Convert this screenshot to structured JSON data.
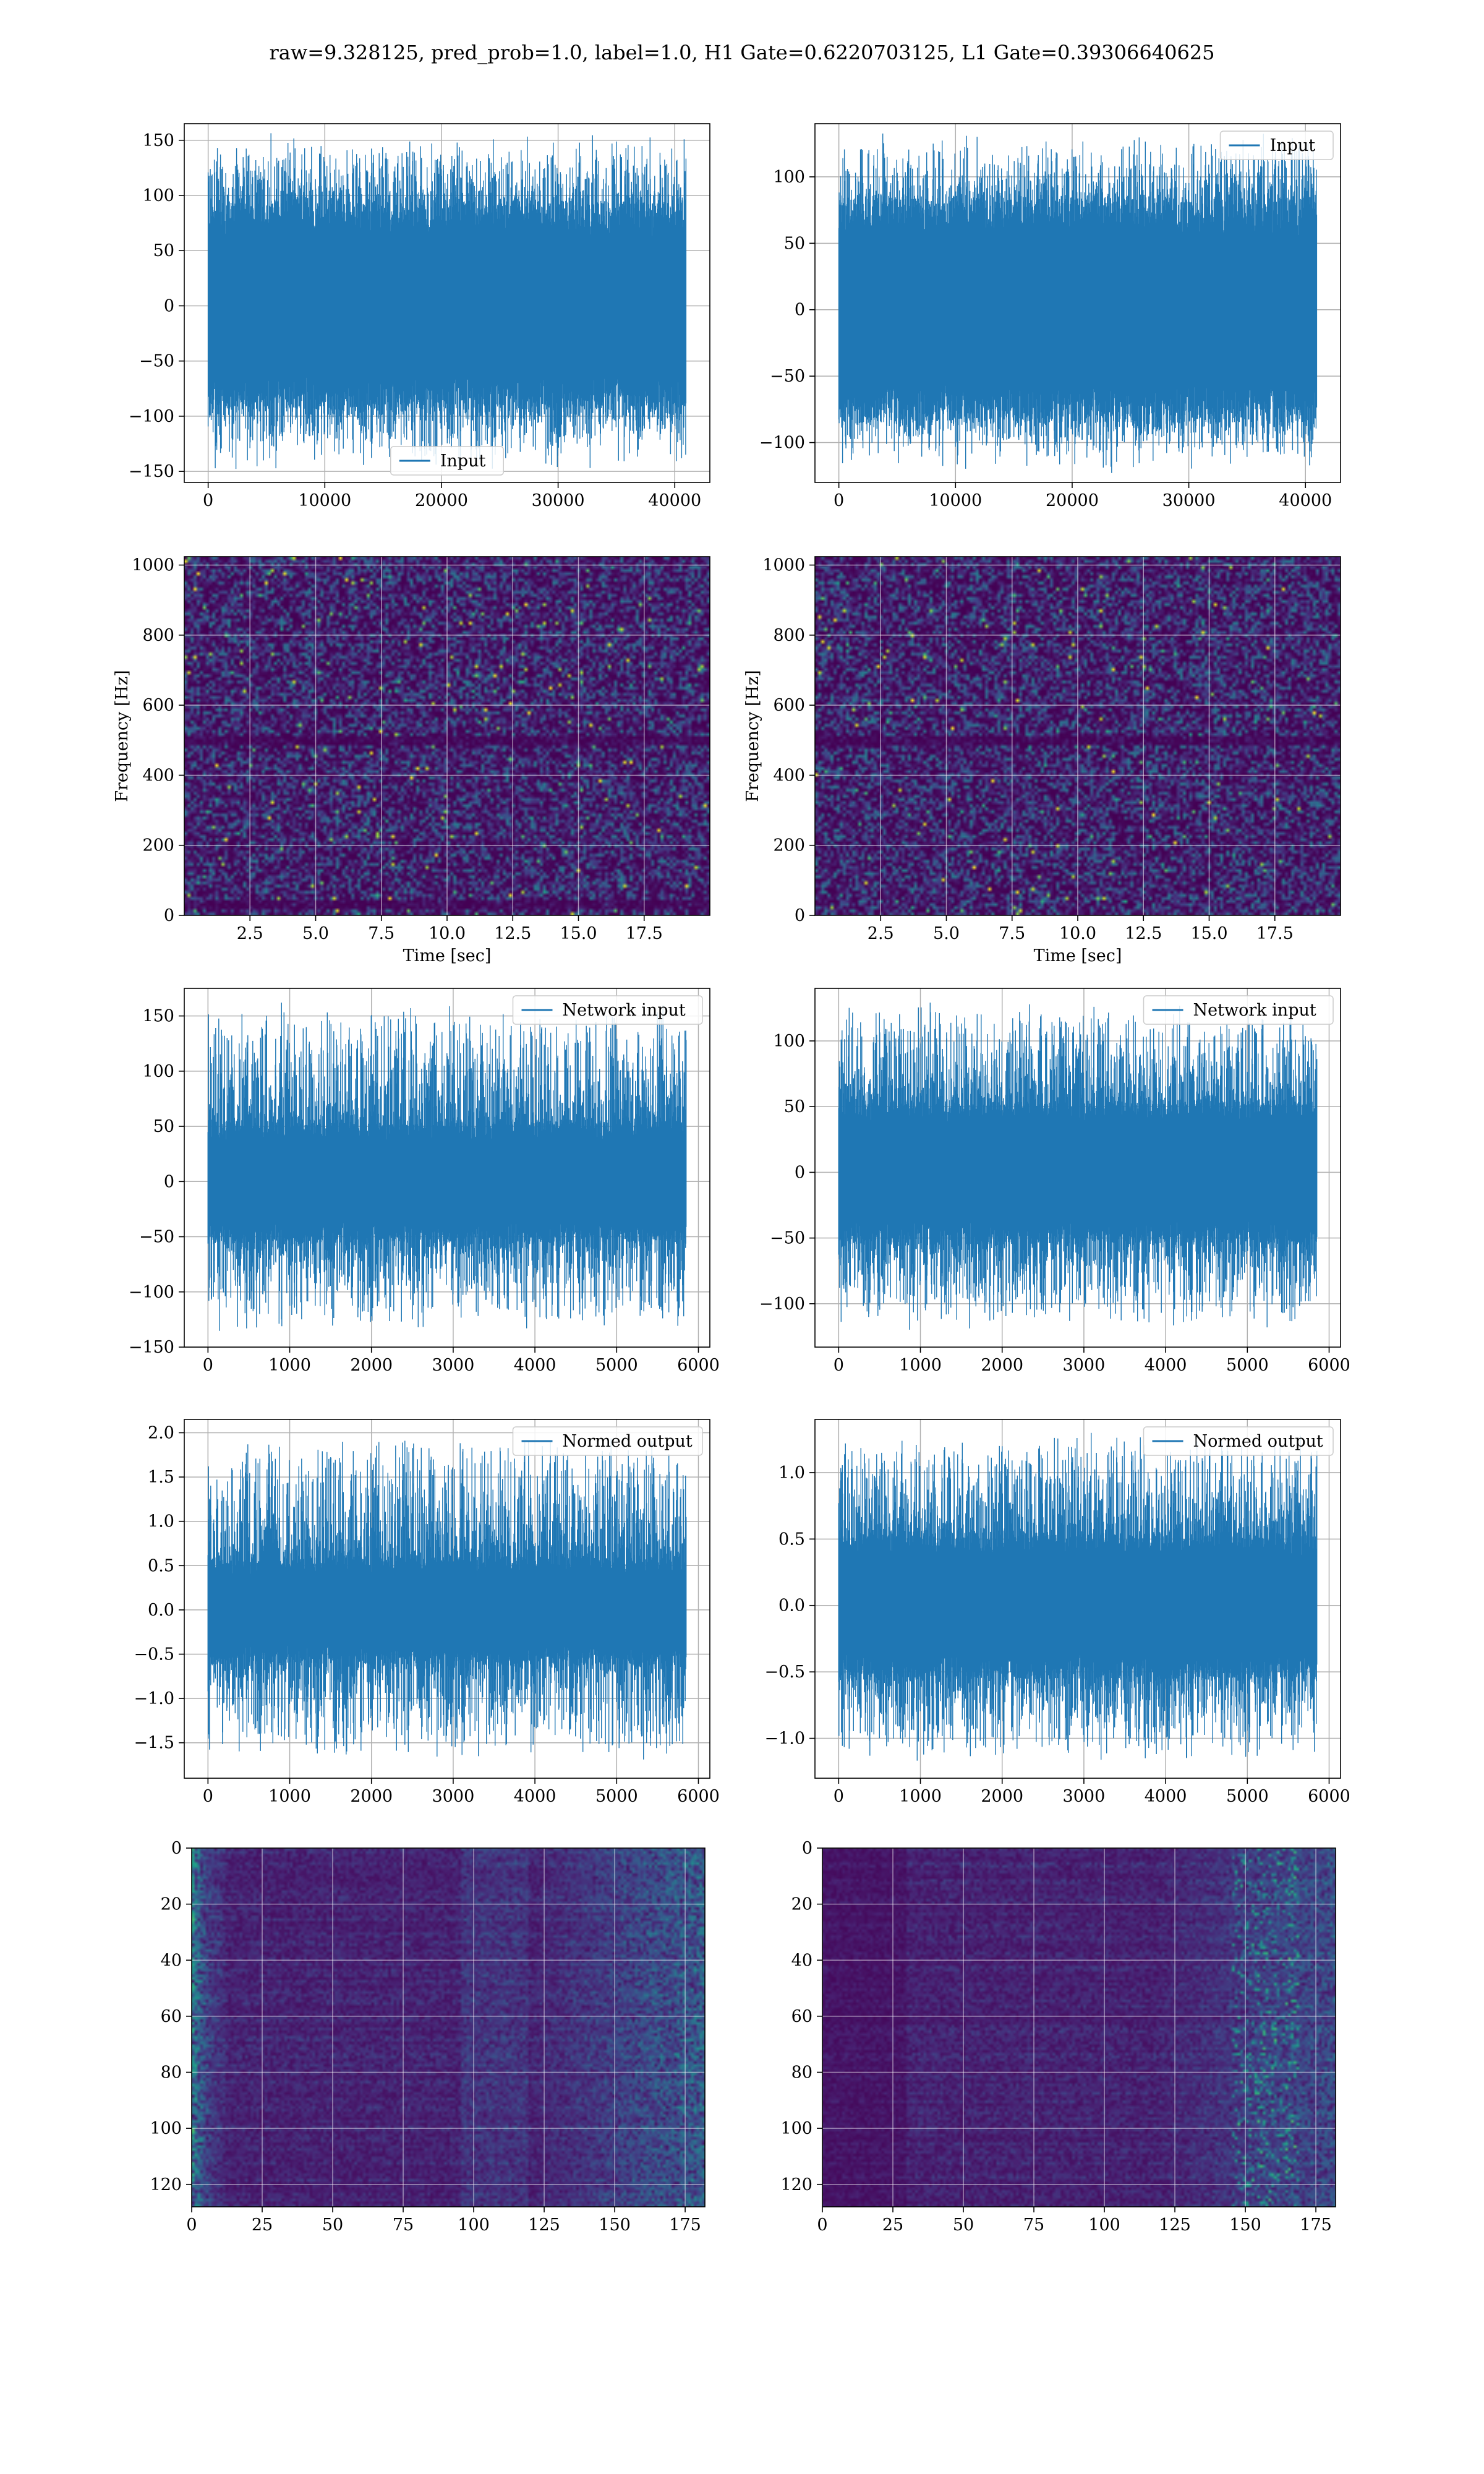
{
  "figure": {
    "suptitle": "raw=9.328125, pred_prob=1.0, label=1.0, H1 Gate=0.6220703125, L1 Gate=0.39306640625",
    "colors": {
      "line": "#1f77b4",
      "spectrogram_low": "#440154",
      "spectrogram_high": "#fde725"
    }
  },
  "chart_data": [
    {
      "id": "h1-input",
      "type": "line",
      "series": [
        {
          "name": "Input",
          "color": "#1f77b4",
          "envelope_upper_typical": 95,
          "envelope_lower_typical": -95,
          "x_range": [
            0,
            40960
          ]
        }
      ],
      "xlim": [
        -2048,
        43008
      ],
      "ylim": [
        -160,
        165
      ],
      "xticks": [
        0,
        10000,
        20000,
        30000,
        40000
      ],
      "xtick_labels": [
        "0",
        "10000",
        "20000",
        "30000",
        "40000"
      ],
      "yticks": [
        -150,
        -100,
        -50,
        0,
        50,
        100,
        150
      ],
      "ytick_labels": [
        "−150",
        "−100",
        "−50",
        "0",
        "50",
        "100",
        "150"
      ],
      "legend": "lower center",
      "grid": true
    },
    {
      "id": "l1-input",
      "type": "line",
      "series": [
        {
          "name": "Input",
          "color": "#1f77b4",
          "envelope_upper_typical": 85,
          "envelope_lower_typical": -85,
          "x_range": [
            0,
            40960
          ]
        }
      ],
      "xlim": [
        -2048,
        43008
      ],
      "ylim": [
        -130,
        140
      ],
      "xticks": [
        0,
        10000,
        20000,
        30000,
        40000
      ],
      "xtick_labels": [
        "0",
        "10000",
        "20000",
        "30000",
        "40000"
      ],
      "yticks": [
        -100,
        -50,
        0,
        50,
        100
      ],
      "ytick_labels": [
        "−100",
        "−50",
        "0",
        "50",
        "100"
      ],
      "legend": "upper right",
      "grid": true
    },
    {
      "id": "h1-spectrogram",
      "type": "heatmap",
      "xlabel": "Time [sec]",
      "ylabel": "Frequency [Hz]",
      "xlim": [
        0,
        20
      ],
      "ylim": [
        0,
        1024
      ],
      "xticks": [
        2.5,
        5.0,
        7.5,
        10.0,
        12.5,
        15.0,
        17.5
      ],
      "xtick_labels": [
        "2.5",
        "5.0",
        "7.5",
        "10.0",
        "12.5",
        "15.0",
        "17.5"
      ],
      "yticks": [
        0,
        200,
        400,
        600,
        800,
        1000
      ],
      "ytick_labels": [
        "0",
        "200",
        "400",
        "600",
        "800",
        "1000"
      ],
      "dark_bands_hz": [
        28,
        500
      ],
      "colormap": "viridis",
      "grid": true
    },
    {
      "id": "l1-spectrogram",
      "type": "heatmap",
      "xlabel": "Time [sec]",
      "ylabel": "Frequency [Hz]",
      "xlim": [
        0,
        20
      ],
      "ylim": [
        0,
        1024
      ],
      "xticks": [
        2.5,
        5.0,
        7.5,
        10.0,
        12.5,
        15.0,
        17.5
      ],
      "xtick_labels": [
        "2.5",
        "5.0",
        "7.5",
        "10.0",
        "12.5",
        "15.0",
        "17.5"
      ],
      "yticks": [
        0,
        200,
        400,
        600,
        800,
        1000
      ],
      "ytick_labels": [
        "0",
        "200",
        "400",
        "600",
        "800",
        "1000"
      ],
      "dark_bands_hz": [
        500
      ],
      "colormap": "viridis",
      "grid": true
    },
    {
      "id": "h1-network-input",
      "type": "line",
      "series": [
        {
          "name": "Network input",
          "color": "#1f77b4",
          "envelope_upper_typical": 55,
          "envelope_lower_typical": -55,
          "x_range": [
            0,
            5850
          ]
        }
      ],
      "xlim": [
        -290,
        6140
      ],
      "ylim": [
        -150,
        175
      ],
      "xticks": [
        0,
        1000,
        2000,
        3000,
        4000,
        5000,
        6000
      ],
      "xtick_labels": [
        "0",
        "1000",
        "2000",
        "3000",
        "4000",
        "5000",
        "6000"
      ],
      "yticks": [
        -150,
        -100,
        -50,
        0,
        50,
        100,
        150
      ],
      "ytick_labels": [
        "−150",
        "−100",
        "−50",
        "0",
        "50",
        "100",
        "150"
      ],
      "legend": "upper right",
      "grid": true
    },
    {
      "id": "l1-network-input",
      "type": "line",
      "series": [
        {
          "name": "Network input",
          "color": "#1f77b4",
          "envelope_upper_typical": 55,
          "envelope_lower_typical": -55,
          "x_range": [
            0,
            5850
          ]
        }
      ],
      "xlim": [
        -290,
        6140
      ],
      "ylim": [
        -133,
        140
      ],
      "xticks": [
        0,
        1000,
        2000,
        3000,
        4000,
        5000,
        6000
      ],
      "xtick_labels": [
        "0",
        "1000",
        "2000",
        "3000",
        "4000",
        "5000",
        "6000"
      ],
      "yticks": [
        -100,
        -50,
        0,
        50,
        100
      ],
      "ytick_labels": [
        "−100",
        "−50",
        "0",
        "50",
        "100"
      ],
      "legend": "upper right",
      "grid": true
    },
    {
      "id": "h1-normed-output",
      "type": "line",
      "series": [
        {
          "name": "Normed output",
          "color": "#1f77b4",
          "envelope_upper_typical": 0.6,
          "envelope_lower_typical": -0.6,
          "x_range": [
            0,
            5850
          ]
        }
      ],
      "xlim": [
        -290,
        6140
      ],
      "ylim": [
        -1.9,
        2.15
      ],
      "xticks": [
        0,
        1000,
        2000,
        3000,
        4000,
        5000,
        6000
      ],
      "xtick_labels": [
        "0",
        "1000",
        "2000",
        "3000",
        "4000",
        "5000",
        "6000"
      ],
      "yticks": [
        -1.5,
        -1.0,
        -0.5,
        0.0,
        0.5,
        1.0,
        1.5,
        2.0
      ],
      "ytick_labels": [
        "−1.5",
        "−1.0",
        "−0.5",
        "0.0",
        "0.5",
        "1.0",
        "1.5",
        "2.0"
      ],
      "legend": "upper right",
      "grid": true
    },
    {
      "id": "l1-normed-output",
      "type": "line",
      "series": [
        {
          "name": "Normed output",
          "color": "#1f77b4",
          "envelope_upper_typical": 0.55,
          "envelope_lower_typical": -0.55,
          "x_range": [
            0,
            5850
          ]
        }
      ],
      "xlim": [
        -290,
        6140
      ],
      "ylim": [
        -1.3,
        1.4
      ],
      "xticks": [
        0,
        1000,
        2000,
        3000,
        4000,
        5000,
        6000
      ],
      "xtick_labels": [
        "0",
        "1000",
        "2000",
        "3000",
        "4000",
        "5000",
        "6000"
      ],
      "yticks": [
        -1.0,
        -0.5,
        0.0,
        0.5,
        1.0
      ],
      "ytick_labels": [
        "−1.0",
        "−0.5",
        "0.0",
        "0.5",
        "1.0"
      ],
      "legend": "upper right",
      "grid": true
    },
    {
      "id": "h1-feature-map",
      "type": "heatmap",
      "rows": 128,
      "cols": 183,
      "xlim": [
        0,
        182
      ],
      "ylim": [
        128,
        0
      ],
      "xticks": [
        0,
        25,
        50,
        75,
        100,
        125,
        150,
        175
      ],
      "xtick_labels": [
        "0",
        "25",
        "50",
        "75",
        "100",
        "125",
        "150",
        "175"
      ],
      "yticks": [
        0,
        20,
        40,
        60,
        80,
        100,
        120
      ],
      "ytick_labels": [
        "0",
        "20",
        "40",
        "60",
        "80",
        "100",
        "120"
      ],
      "colormap": "viridis",
      "grid": true
    },
    {
      "id": "l1-feature-map",
      "type": "heatmap",
      "rows": 128,
      "cols": 183,
      "xlim": [
        0,
        182
      ],
      "ylim": [
        128,
        0
      ],
      "xticks": [
        0,
        25,
        50,
        75,
        100,
        125,
        150,
        175
      ],
      "xtick_labels": [
        "0",
        "25",
        "50",
        "75",
        "100",
        "125",
        "150",
        "175"
      ],
      "yticks": [
        0,
        20,
        40,
        60,
        80,
        100,
        120
      ],
      "ytick_labels": [
        "0",
        "20",
        "40",
        "60",
        "80",
        "100",
        "120"
      ],
      "colormap": "viridis",
      "grid": true
    }
  ]
}
